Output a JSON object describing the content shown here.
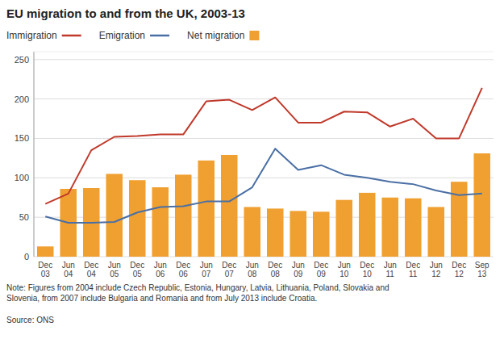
{
  "chart_data": {
    "type": "bar",
    "title": "EU migration to and from the UK, 2003-13",
    "categories": [
      "Dec\n03",
      "Jun\n04",
      "Dec\n04",
      "Jun\n05",
      "Dec\n05",
      "Jun\n06",
      "Dec\n06",
      "Jun\n07",
      "Dec\n07",
      "Jun\n08",
      "Dec\n08",
      "Jun\n09",
      "Dec\n09",
      "Jun\n10",
      "Dec\n10",
      "Jun\n11",
      "Dec\n11",
      "Jun\n12",
      "Dec\n12",
      "Sep\n13"
    ],
    "series": [
      {
        "name": "Immigration",
        "type": "line",
        "color": "#c0392b",
        "values": [
          67,
          80,
          135,
          152,
          153,
          155,
          155,
          197,
          199,
          186,
          202,
          170,
          170,
          184,
          183,
          165,
          175,
          150,
          150,
          214
        ]
      },
      {
        "name": "Emigration",
        "type": "line",
        "color": "#4a6fa5",
        "values": [
          51,
          43,
          43,
          44,
          56,
          63,
          64,
          70,
          70,
          88,
          137,
          110,
          116,
          104,
          100,
          95,
          92,
          84,
          78,
          80
        ]
      },
      {
        "name": "Net migration",
        "type": "bar",
        "color": "#f0a030",
        "values": [
          13,
          86,
          87,
          105,
          97,
          88,
          104,
          122,
          129,
          63,
          61,
          58,
          57,
          72,
          81,
          75,
          74,
          63,
          95,
          131
        ]
      }
    ],
    "ylim": [
      0,
      260
    ],
    "yticks": [
      0,
      50,
      100,
      150,
      200,
      250
    ],
    "grid": true,
    "legend": "top",
    "annotations": [
      "Note: Figures from 2004 include Czech Republic, Estonia, Hungary, Latvia, Lithuania, Poland, Slovakia and\nSlovenia, from 2007 include Bulgaria and Romania and from July 2013 include Croatia.",
      "Source: ONS"
    ]
  }
}
